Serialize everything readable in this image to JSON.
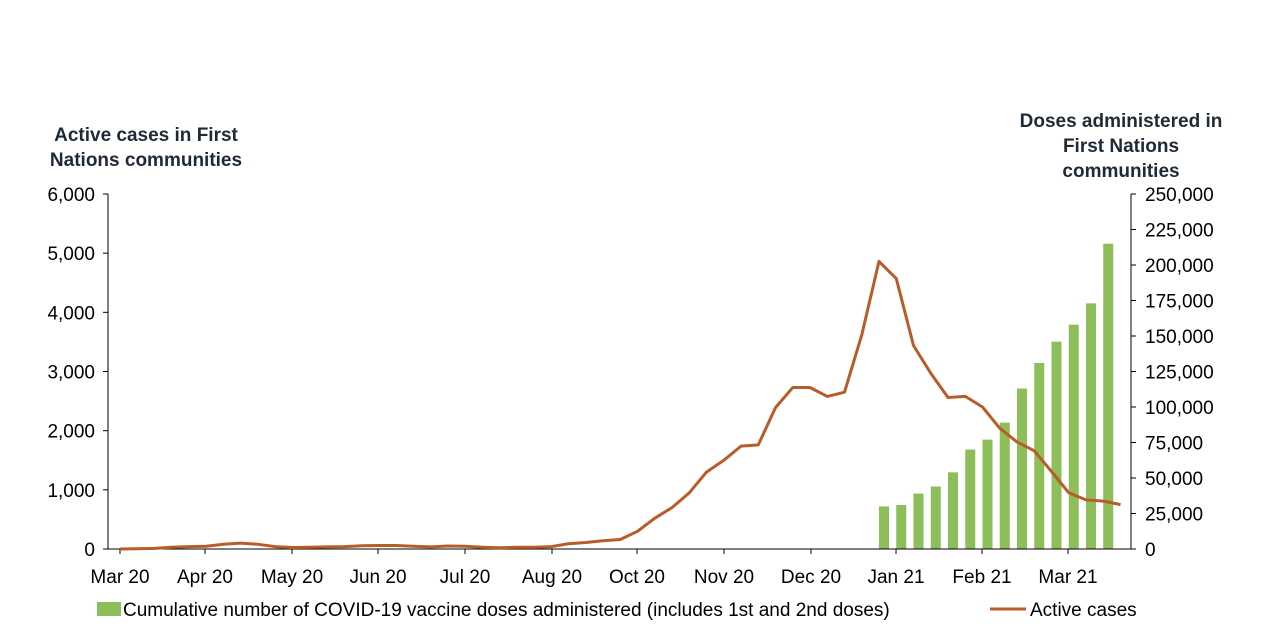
{
  "chart_data": {
    "type": "bar+line",
    "left_axis_title": [
      "Active cases in First",
      "Nations communities"
    ],
    "right_axis_title": [
      "Doses administered in",
      "First Nations",
      "communities"
    ],
    "left_ticks": [
      "0",
      "1,000",
      "2,000",
      "3,000",
      "4,000",
      "5,000",
      "6,000"
    ],
    "right_ticks": [
      "0",
      "25,000",
      "50,000",
      "75,000",
      "100,000",
      "125,000",
      "150,000",
      "175,000",
      "200,000",
      "225,000",
      "250,000"
    ],
    "ylim_left": [
      0,
      6000
    ],
    "ylim_right": [
      0,
      250000
    ],
    "x_ticks": [
      "Mar 20",
      "Apr 20",
      "May 20",
      "Jun 20",
      "Jul 20",
      "Aug 20",
      "Oct 20",
      "Nov 20",
      "Dec 20",
      "Jan 21",
      "Feb 21",
      "Mar 21"
    ],
    "series": [
      {
        "name": "Active cases",
        "kind": "line",
        "axis": "left",
        "color": "#b85c2a",
        "values": [
          0,
          5,
          10,
          30,
          40,
          45,
          80,
          100,
          80,
          40,
          25,
          30,
          35,
          40,
          55,
          60,
          60,
          45,
          35,
          50,
          45,
          30,
          20,
          30,
          30,
          40,
          90,
          110,
          140,
          160,
          300,
          520,
          700,
          950,
          1300,
          1500,
          1740,
          1760,
          2390,
          2730,
          2730,
          2580,
          2650,
          3620,
          4860,
          4570,
          3440,
          2970,
          2560,
          2580,
          2400,
          2040,
          1810,
          1660,
          1310,
          950,
          830,
          810,
          750
        ]
      },
      {
        "name": "Cumulative number of COVID-19 vaccine doses administered (includes 1st and 2nd doses)",
        "kind": "bar",
        "axis": "right",
        "color": "#8cbe5a",
        "start_index": 44,
        "values": [
          30000,
          31000,
          39000,
          44000,
          54000,
          70000,
          77000,
          89000,
          113000,
          131000,
          146000,
          158000,
          173000,
          215000
        ]
      }
    ]
  }
}
